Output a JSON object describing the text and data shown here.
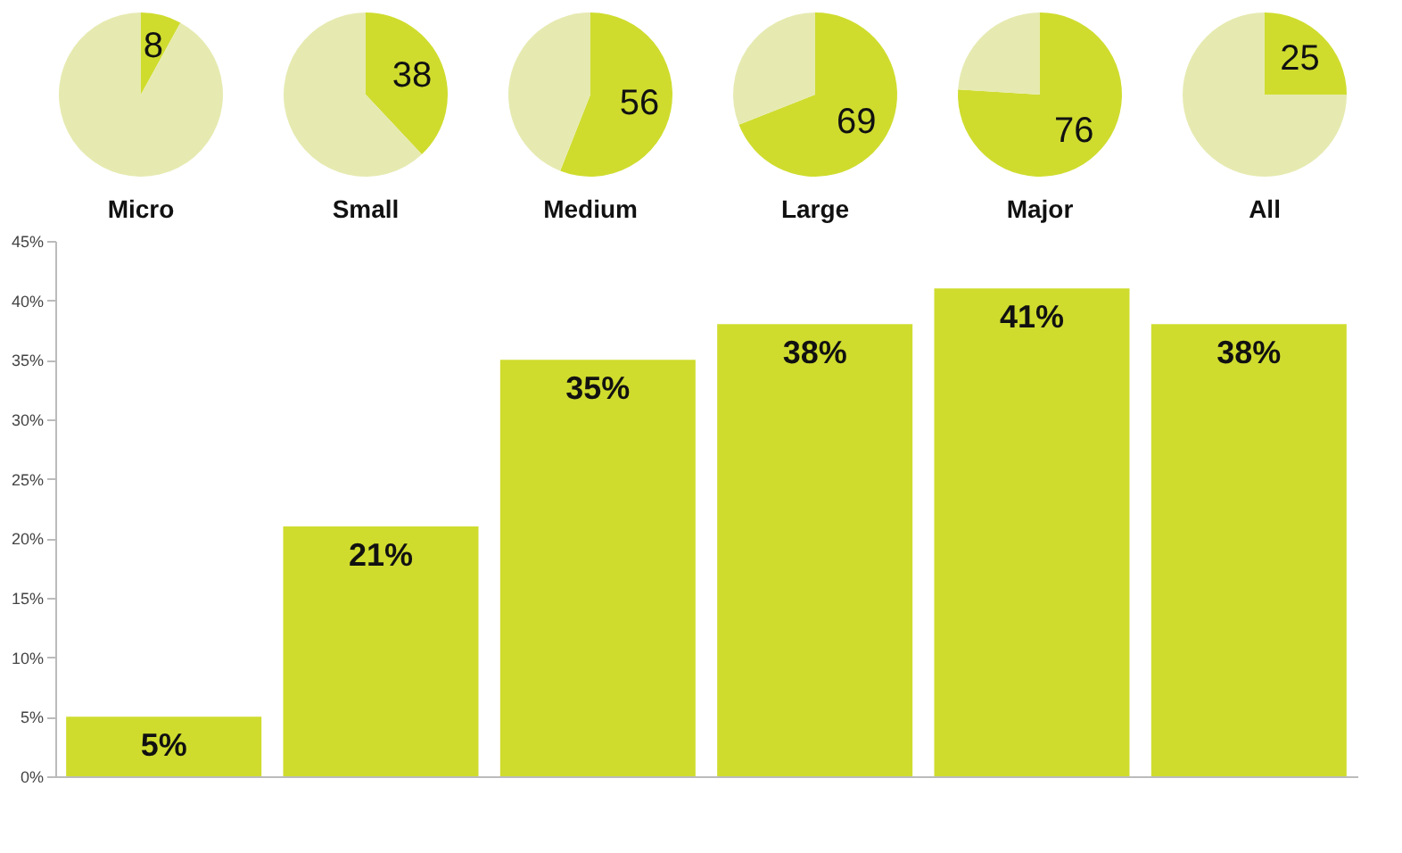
{
  "chart_data": [
    {
      "type": "pie",
      "title": "Micro",
      "categories": [
        null,
        null
      ],
      "values": [
        8,
        92
      ],
      "colors": [
        "#cfdc2e",
        "#e6eab0"
      ],
      "value_labels": [
        "8",
        null
      ]
    },
    {
      "type": "pie",
      "title": "Small",
      "categories": [
        null,
        null
      ],
      "values": [
        38,
        62
      ],
      "colors": [
        "#cfdc2e",
        "#e6eab0"
      ],
      "value_labels": [
        "38",
        null
      ]
    },
    {
      "type": "pie",
      "title": "Medium",
      "categories": [
        null,
        null
      ],
      "values": [
        56,
        44
      ],
      "colors": [
        "#cfdc2e",
        "#e6eab0"
      ],
      "value_labels": [
        "56",
        null
      ]
    },
    {
      "type": "pie",
      "title": "Large",
      "categories": [
        null,
        null
      ],
      "values": [
        69,
        31
      ],
      "colors": [
        "#cfdc2e",
        "#e6eab0"
      ],
      "value_labels": [
        "69",
        null
      ]
    },
    {
      "type": "pie",
      "title": "Major",
      "categories": [
        null,
        null
      ],
      "values": [
        76,
        24
      ],
      "colors": [
        "#cfdc2e",
        "#e6eab0"
      ],
      "value_labels": [
        "76",
        null
      ]
    },
    {
      "type": "pie",
      "title": "All",
      "categories": [
        null,
        null
      ],
      "values": [
        25,
        75
      ],
      "colors": [
        "#cfdc2e",
        "#e6eab0"
      ],
      "value_labels": [
        "25",
        null
      ]
    },
    {
      "type": "bar",
      "categories": [
        null,
        null,
        null,
        null,
        null,
        null
      ],
      "values": [
        5,
        21,
        35,
        38,
        41,
        38
      ],
      "color": "#cfdc2e",
      "ylim": [
        0,
        45
      ],
      "yticks": [
        {
          "value": 0,
          "label": "0%"
        },
        {
          "value": 5,
          "label": "5%"
        },
        {
          "value": 10,
          "label": "10%"
        },
        {
          "value": 15,
          "label": "15%"
        },
        {
          "value": 20,
          "label": "20%"
        },
        {
          "value": 25,
          "label": "25%"
        },
        {
          "value": 30,
          "label": "30%"
        },
        {
          "value": 35,
          "label": "35%"
        },
        {
          "value": 40,
          "label": "40%"
        },
        {
          "value": 45,
          "label": "45%"
        }
      ],
      "value_labels": [
        "5%",
        "21%",
        "35%",
        "38%",
        "41%",
        "38%"
      ],
      "tick_labels": "y"
    }
  ]
}
